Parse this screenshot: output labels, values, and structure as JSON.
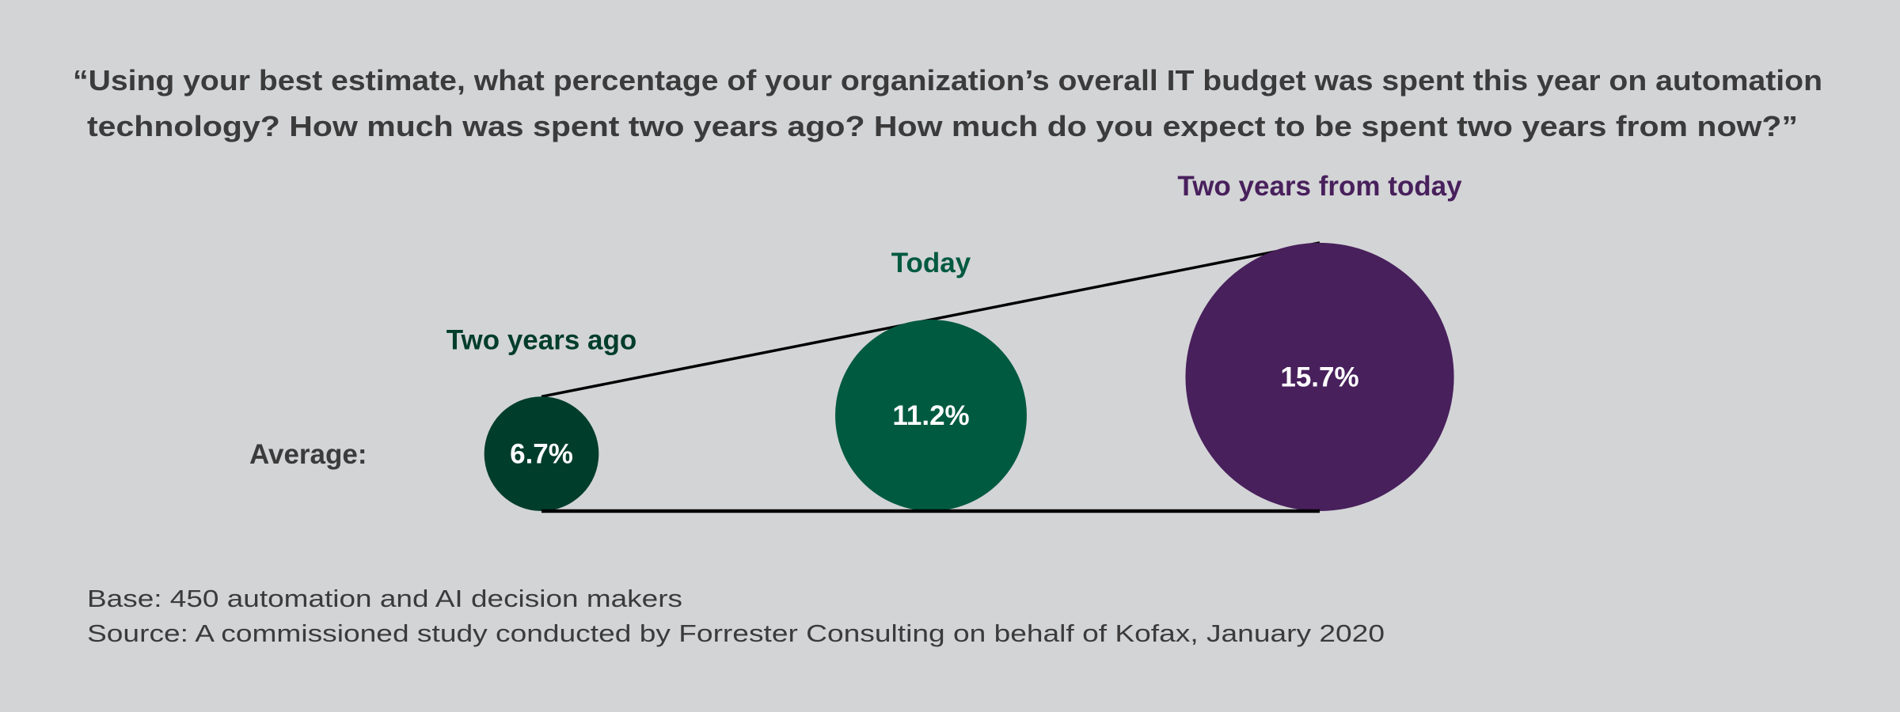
{
  "question": {
    "line1": "“Using your best estimate, what percentage of your organization’s overall IT budget was spent this year on automation",
    "line2": "technology? How much was spent two years ago? How much do you expect to be spent two years from now?”"
  },
  "chart_data": {
    "type": "bubble",
    "row_label": "Average:",
    "categories": [
      "Two years ago",
      "Today",
      "Two years from today"
    ],
    "values": [
      6.7,
      11.2,
      15.7
    ],
    "value_labels": [
      "6.7%",
      "11.2%",
      "15.7%"
    ],
    "unit": "%",
    "colors": [
      "#013d2b",
      "#005a3f",
      "#48205c"
    ]
  },
  "footnotes": {
    "base": "Base: 450 automation and AI decision makers",
    "source": "Source: A commissioned study conducted by Forrester Consulting on behalf of Kofax, January 2020"
  }
}
